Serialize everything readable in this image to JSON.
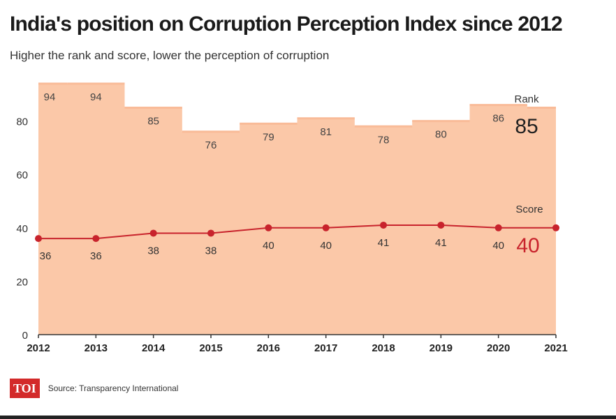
{
  "header": {
    "title": "India's position on Corruption Perception Index since 2012",
    "subtitle": "Higher the rank and score, lower the perception of corruption"
  },
  "footer": {
    "logo": "TOI",
    "source": "Source: Transparency International"
  },
  "colors": {
    "area_fill": "#fbc8a8",
    "area_top": "#f9bb98",
    "score_line": "#c8232c",
    "axis": "#333333"
  },
  "chart_data": {
    "type": "area",
    "categories": [
      "2012",
      "2013",
      "2014",
      "2015",
      "2016",
      "2017",
      "2018",
      "2019",
      "2020",
      "2021"
    ],
    "series": [
      {
        "name": "Rank",
        "style": "step-area",
        "values": [
          94,
          94,
          85,
          76,
          79,
          81,
          78,
          80,
          86,
          85
        ]
      },
      {
        "name": "Score",
        "style": "line",
        "values": [
          36,
          36,
          38,
          38,
          40,
          40,
          41,
          41,
          40,
          40
        ]
      }
    ],
    "y_ticks": [
      0,
      20,
      40,
      60,
      80
    ],
    "ylim": [
      0,
      94
    ],
    "legend": [
      {
        "series": "Rank",
        "label": "Rank",
        "latest": "85"
      },
      {
        "series": "Score",
        "label": "Score",
        "latest": "40"
      }
    ],
    "title": "India's position on Corruption Perception Index since 2012",
    "xlabel": "",
    "ylabel": ""
  }
}
